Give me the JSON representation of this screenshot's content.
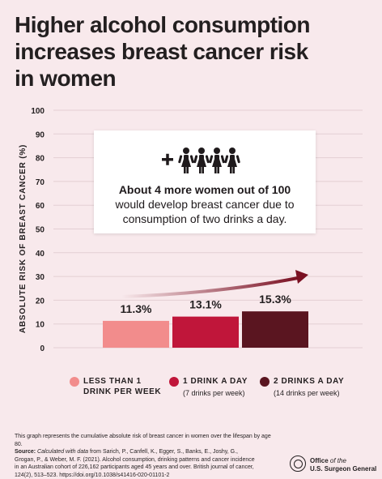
{
  "title": {
    "line1": "Higher alcohol consumption",
    "line2": "increases breast cancer risk",
    "line3": "in women"
  },
  "callout": {
    "main": "About 4 more women out of 100",
    "sub1": "would develop breast cancer due to",
    "sub2": "consumption of two drinks a day.",
    "icon": "plus-four-women-icon"
  },
  "legend": [
    {
      "line1": "LESS THAN 1",
      "line2": "DRINK PER WEEK",
      "note": "",
      "color": "#f28c8c"
    },
    {
      "line1": "1 DRINK A DAY",
      "line2": "",
      "note": "(7 drinks per week)",
      "color": "#c0163a"
    },
    {
      "line1": "2 DRINKS A DAY",
      "line2": "",
      "note": "(14 drinks per week)",
      "color": "#5a1520"
    }
  ],
  "footnote": "This graph represents the cumulative absolute risk of breast cancer in women over the lifespan by age 80.",
  "source": {
    "label": "Source:",
    "italic": "Calculated with data",
    "text": "from Sarich, P., Canfell, K., Egger, S., Banks, E., Joshy, G., Grogan, P., & Weber, M. F. (2021). Alcohol consumption, drinking patterns and cancer incidence in an Australian cohort of 226,162 participants aged 45 years and over. British journal of cancer, 124(2), 513–523. https://doi.org/10.1038/s41416-020-01101-2"
  },
  "logo": {
    "line1a": "Office",
    "line1b": "of the",
    "line2": "U.S. Surgeon General"
  },
  "chart_data": {
    "type": "bar",
    "categories": [
      "LESS THAN 1 DRINK PER WEEK",
      "1 DRINK A DAY",
      "2 DRINKS A DAY"
    ],
    "values": [
      11.3,
      13.1,
      15.3
    ],
    "value_labels": [
      "11.3%",
      "13.1%",
      "15.3%"
    ],
    "colors": [
      "#f28c8c",
      "#c0163a",
      "#5a1520"
    ],
    "ylabel": "ABSOLUTE RISK OF BREAST CANCER (%)",
    "ylim": [
      0,
      100
    ],
    "yticks": [
      0,
      10,
      20,
      30,
      40,
      50,
      60,
      70,
      80,
      90,
      100
    ],
    "grid": true,
    "arrow_color": "#7a1022"
  }
}
